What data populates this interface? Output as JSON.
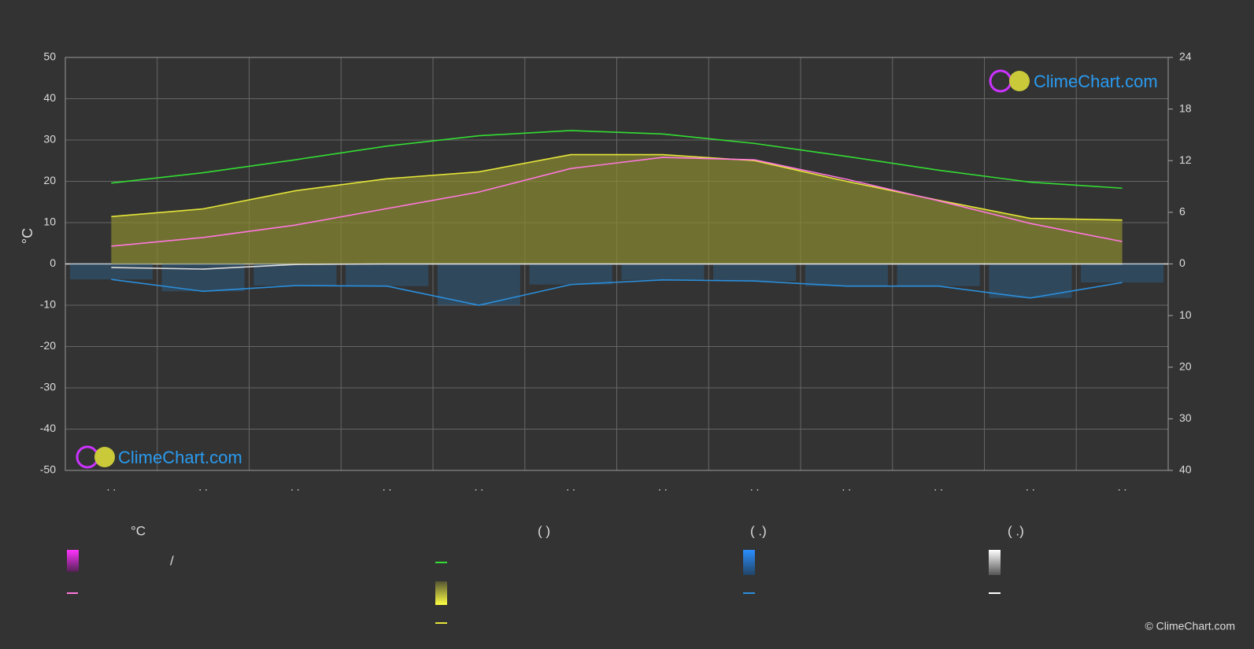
{
  "chart_data": {
    "type": "line",
    "ylabel": "°C",
    "categories": [
      ". .",
      ". .",
      ". .",
      ". .",
      ". .",
      ". .",
      ". .",
      ". .",
      ". .",
      ". .",
      ". .",
      ". ."
    ],
    "ylim": [
      -50,
      50
    ],
    "yticks": [
      50,
      40,
      30,
      20,
      10,
      0,
      -10,
      -20,
      -30,
      -40,
      -50
    ],
    "y2lim": [
      0,
      24
    ],
    "y2ticks": [
      24,
      18,
      12,
      6,
      0
    ],
    "y3lim": [
      0,
      40
    ],
    "y3ticks": [
      10,
      20,
      30,
      40
    ],
    "grid": true,
    "series": [
      {
        "color": "#33dd33",
        "axis": "y2",
        "values": [
          9.4,
          10.6,
          12.1,
          13.7,
          14.9,
          15.5,
          15.1,
          14.0,
          12.5,
          10.9,
          9.5,
          8.8
        ]
      },
      {
        "color": "#e6e63a",
        "axis": "y2",
        "values": [
          5.5,
          6.4,
          8.5,
          9.9,
          10.7,
          12.7,
          12.7,
          12.0,
          9.6,
          7.4,
          5.3,
          5.1
        ]
      },
      {
        "color": "#ff77dd",
        "values": [
          4.3,
          6.4,
          9.4,
          13.4,
          17.4,
          23.1,
          25.8,
          25.2,
          20.5,
          15.3,
          9.8,
          5.4
        ]
      },
      {
        "color": "#2a8fdd",
        "axis": "y3",
        "values": [
          3.0,
          5.3,
          4.2,
          4.3,
          8.0,
          4.0,
          3.1,
          3.3,
          4.3,
          4.3,
          6.6,
          3.6
        ]
      },
      {
        "color": "#dddddd",
        "axis": "y3",
        "values": [
          0.7,
          1.0,
          0.1,
          0,
          0,
          0,
          0,
          0,
          0,
          0,
          0,
          0
        ]
      }
    ],
    "legend": {
      "headers": [
        "°C",
        "(          )",
        "(   .)",
        "(   .)"
      ],
      "slash": "/"
    },
    "logo": "ClimeChart.com",
    "copyright": "© ClimeChart.com"
  }
}
